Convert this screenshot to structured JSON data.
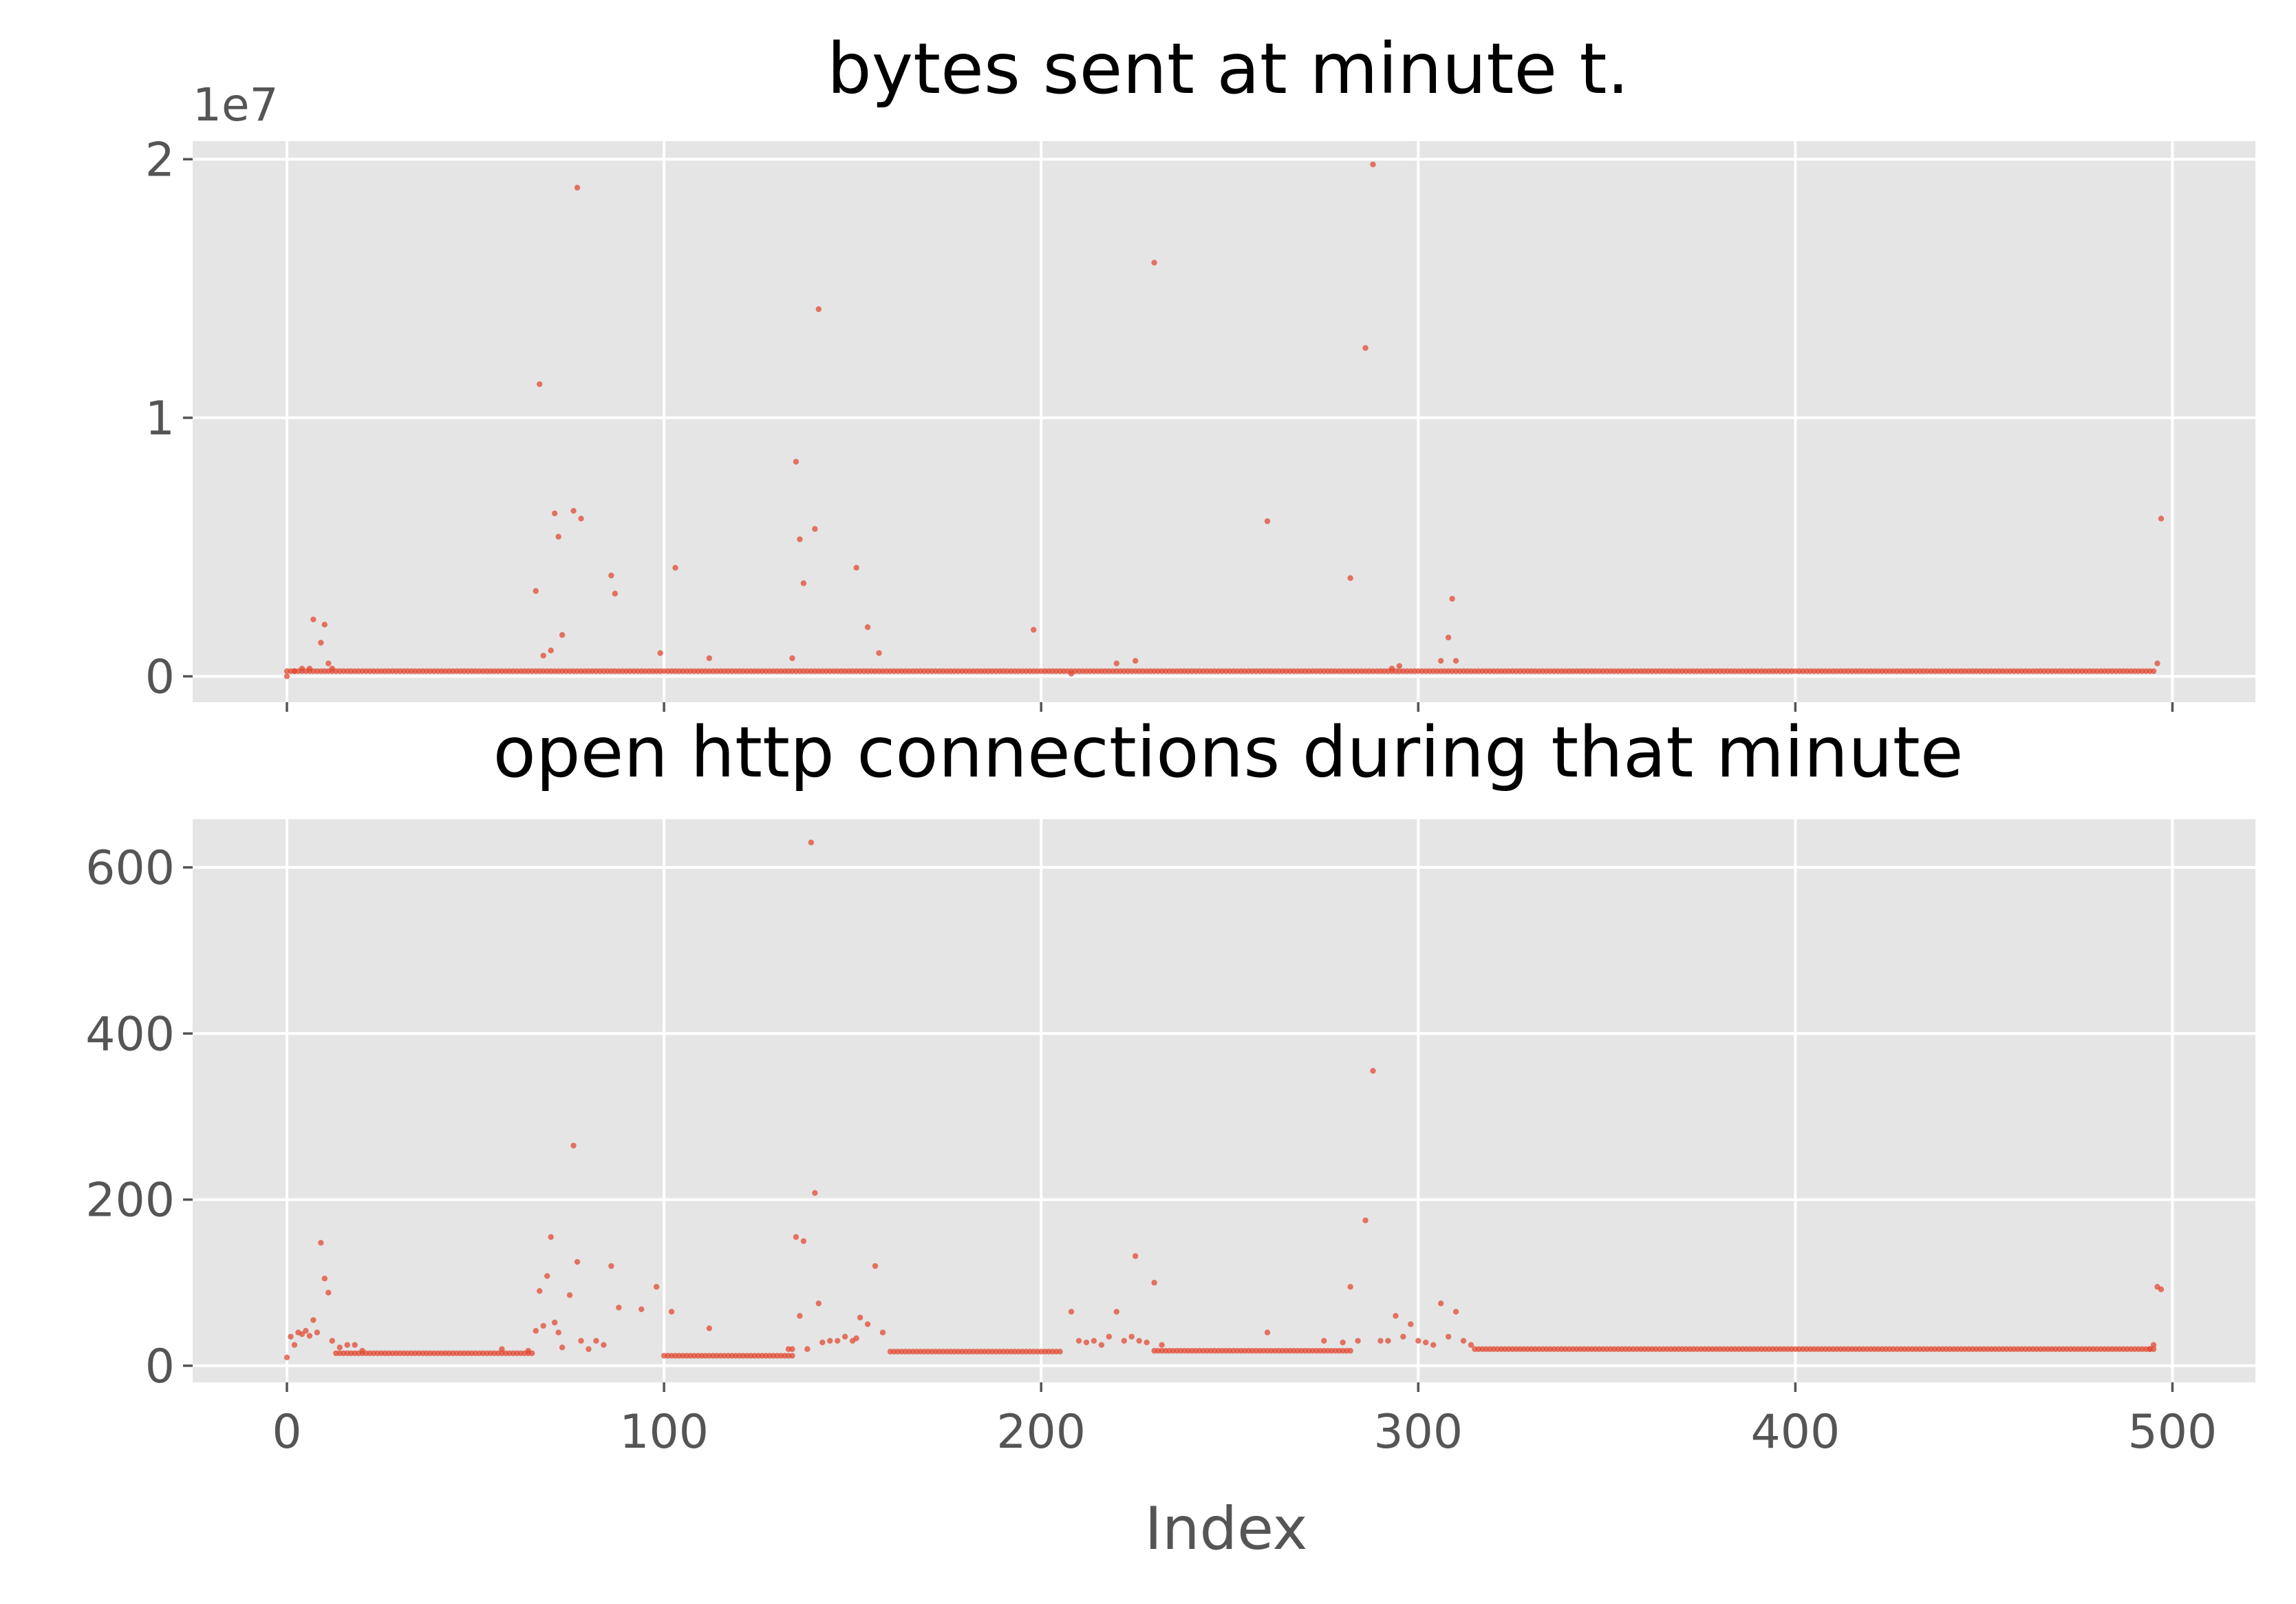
{
  "chart_data": [
    {
      "type": "scatter",
      "title": "bytes sent at minute t.",
      "xlabel": "",
      "ylabel": "",
      "y_offset_label": "1e7",
      "xlim": [
        -25,
        522
      ],
      "ylim": [
        -0.1,
        2.07
      ],
      "y_unit_scale": 10000000,
      "xticks": [
        0,
        100,
        200,
        300,
        400,
        500
      ],
      "xtick_labels_visible": false,
      "yticks": [
        0,
        1,
        2
      ],
      "ytick_labels": [
        "0",
        "1",
        "2"
      ],
      "grid": true,
      "marker_color": "#e24a33",
      "series": [
        {
          "baseline_y": 0.02,
          "baseline_x_range": [
            0,
            495
          ],
          "x": [
            0,
            2,
            4,
            6,
            7,
            9,
            10,
            11,
            12,
            66,
            67,
            68,
            70,
            71,
            72,
            73,
            76,
            77,
            78,
            86,
            87,
            99,
            103,
            112,
            134,
            135,
            136,
            137,
            140,
            141,
            151,
            154,
            157,
            198,
            208,
            220,
            225,
            230,
            260,
            282,
            286,
            288,
            293,
            295,
            306,
            308,
            309,
            310,
            496,
            497
          ],
          "y": [
            0.0,
            0.02,
            0.03,
            0.03,
            0.22,
            0.13,
            0.2,
            0.05,
            0.03,
            0.33,
            1.13,
            0.08,
            0.1,
            0.63,
            0.54,
            0.16,
            0.64,
            1.89,
            0.61,
            0.39,
            0.32,
            0.09,
            0.42,
            0.07,
            0.07,
            0.83,
            0.53,
            0.36,
            0.57,
            1.42,
            0.42,
            0.19,
            0.09,
            0.18,
            0.01,
            0.05,
            0.06,
            1.6,
            0.6,
            0.38,
            1.27,
            1.98,
            0.03,
            0.04,
            0.06,
            0.15,
            0.3,
            0.06,
            0.05,
            0.61
          ]
        }
      ]
    },
    {
      "type": "scatter",
      "title": "open http connections during that minute",
      "xlabel": "Index",
      "ylabel": "",
      "xlim": [
        -25,
        522
      ],
      "ylim": [
        -20,
        658
      ],
      "xticks": [
        0,
        100,
        200,
        300,
        400,
        500
      ],
      "xtick_labels": [
        "0",
        "100",
        "200",
        "300",
        "400",
        "500"
      ],
      "yticks": [
        0,
        200,
        400,
        600
      ],
      "ytick_labels": [
        "0",
        "200",
        "400",
        "600"
      ],
      "grid": true,
      "marker_color": "#e24a33",
      "series": [
        {
          "baseline_segments": [
            {
              "x_range": [
                13,
                65
              ],
              "y": 15
            },
            {
              "x_range": [
                100,
                134
              ],
              "y": 12
            },
            {
              "x_range": [
                160,
                205
              ],
              "y": 17
            },
            {
              "x_range": [
                230,
                282
              ],
              "y": 18
            },
            {
              "x_range": [
                315,
                495
              ],
              "y": 20
            }
          ],
          "x": [
            0,
            1,
            2,
            3,
            4,
            5,
            6,
            7,
            8,
            9,
            10,
            11,
            12,
            14,
            16,
            18,
            20,
            57,
            64,
            66,
            67,
            68,
            69,
            70,
            71,
            72,
            73,
            75,
            76,
            77,
            78,
            80,
            82,
            84,
            86,
            88,
            94,
            98,
            102,
            112,
            133,
            134,
            135,
            136,
            137,
            138,
            139,
            140,
            141,
            142,
            144,
            146,
            148,
            150,
            151,
            152,
            154,
            156,
            158,
            208,
            210,
            212,
            214,
            216,
            218,
            220,
            222,
            224,
            225,
            226,
            228,
            230,
            232,
            260,
            275,
            280,
            282,
            284,
            286,
            288,
            290,
            292,
            294,
            296,
            298,
            300,
            302,
            304,
            306,
            308,
            310,
            312,
            314,
            494,
            495,
            496,
            497
          ],
          "y": [
            10,
            35,
            25,
            40,
            38,
            42,
            36,
            55,
            40,
            148,
            105,
            88,
            30,
            22,
            25,
            25,
            18,
            20,
            18,
            42,
            90,
            48,
            108,
            155,
            52,
            40,
            22,
            85,
            265,
            125,
            30,
            20,
            30,
            25,
            120,
            70,
            68,
            95,
            65,
            45,
            20,
            20,
            155,
            60,
            150,
            20,
            630,
            208,
            75,
            28,
            30,
            30,
            35,
            30,
            33,
            58,
            50,
            120,
            40,
            65,
            30,
            28,
            30,
            25,
            35,
            65,
            30,
            35,
            132,
            30,
            28,
            100,
            25,
            40,
            30,
            28,
            95,
            30,
            175,
            355,
            30,
            30,
            60,
            35,
            50,
            30,
            28,
            25,
            75,
            35,
            65,
            30,
            25,
            20,
            25,
            95,
            92
          ]
        }
      ]
    }
  ]
}
